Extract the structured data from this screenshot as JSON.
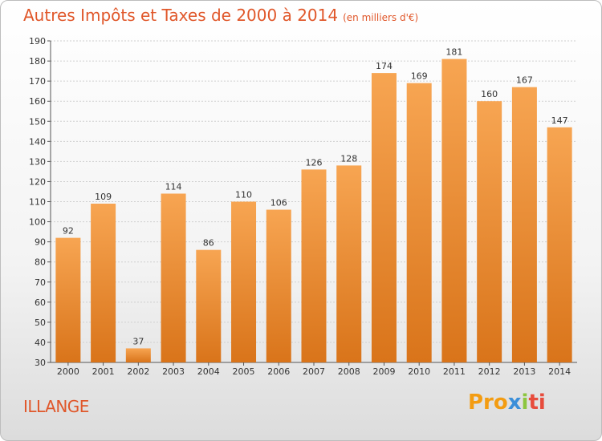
{
  "header": {
    "title": "Autres Impôts et Taxes de 2000 à 2014",
    "unit": "(en milliers d'€)"
  },
  "footer": {
    "city": "ILLANGE",
    "logo": [
      "Pro",
      "x",
      "i",
      "ti"
    ]
  },
  "colors": {
    "bar_light": "#f7a552",
    "bar_dark": "#d9741a",
    "title": "#e0572a",
    "grid": "#cfcfcf"
  },
  "chart_data": {
    "type": "bar",
    "categories": [
      "2000",
      "2001",
      "2002",
      "2003",
      "2004",
      "2005",
      "2006",
      "2007",
      "2008",
      "2009",
      "2010",
      "2011",
      "2012",
      "2013",
      "2014"
    ],
    "values": [
      92,
      109,
      37,
      114,
      86,
      110,
      106,
      126,
      128,
      174,
      169,
      181,
      160,
      167,
      147
    ],
    "ylim": [
      30,
      190
    ],
    "yticks": [
      30,
      40,
      50,
      60,
      70,
      80,
      90,
      100,
      110,
      120,
      130,
      140,
      150,
      160,
      170,
      180,
      190
    ],
    "grid": true
  }
}
